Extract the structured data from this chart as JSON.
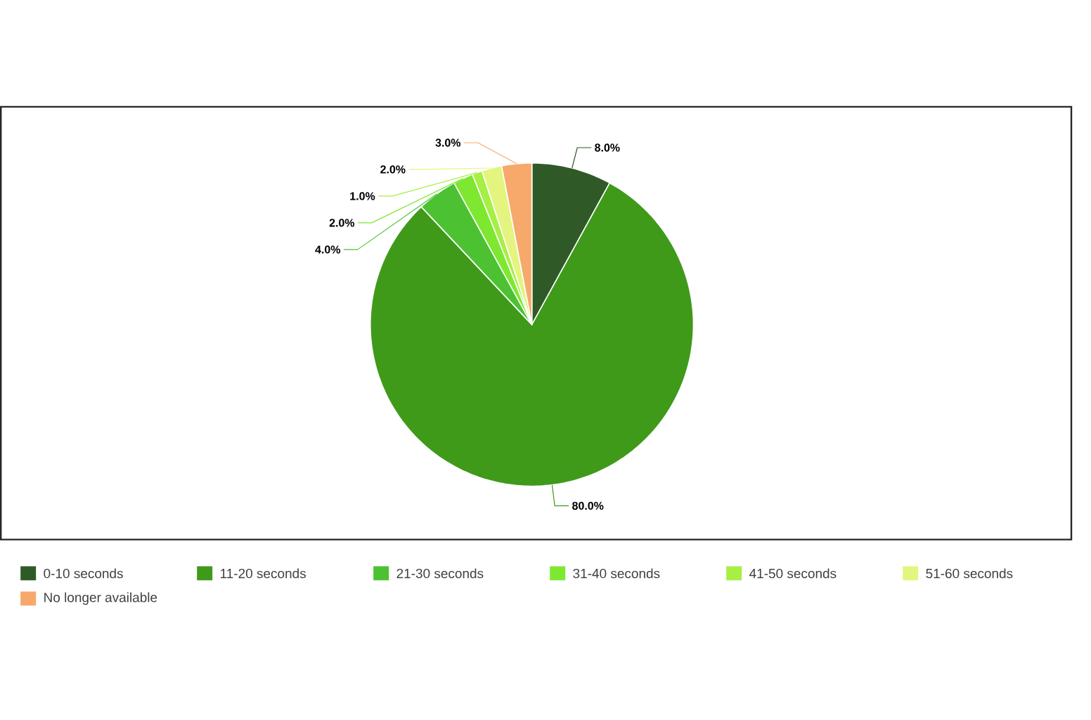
{
  "chart_data": {
    "type": "pie",
    "categories": [
      "0-10 seconds",
      "11-20 seconds",
      "21-30 seconds",
      "31-40 seconds",
      "41-50 seconds",
      "51-60 seconds",
      "No longer available"
    ],
    "values": [
      8,
      80,
      4,
      2,
      1,
      2,
      3
    ],
    "colors": [
      "#2f5a27",
      "#3f9a1a",
      "#4cc233",
      "#7ee830",
      "#a6ef45",
      "#e3f57f",
      "#f7a96b"
    ],
    "value_labels": [
      "8.0%",
      "80.0%",
      "4.0%",
      "2.0%",
      "1.0%",
      "2.0%",
      "3.0%"
    ],
    "legend": "bottom"
  }
}
